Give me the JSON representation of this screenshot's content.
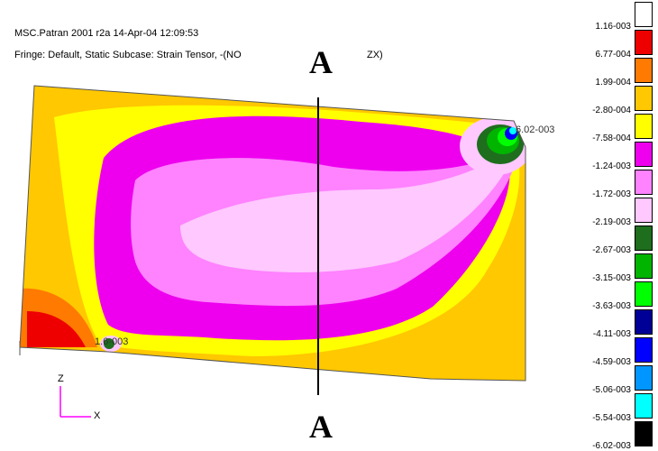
{
  "header": {
    "line1": "MSC.Patran 2001 r2a 14-Apr-04 12:09:53",
    "line2": "Fringe: Default, Static Subcase: Strain Tensor, -(NO",
    "line2_suffix": "ZX)"
  },
  "section": {
    "top_label": "A",
    "bottom_label": "A"
  },
  "probes": {
    "max_label": "6.02-003",
    "min_label": "1.6-003"
  },
  "axes": {
    "z_label": "Z",
    "x_label": "X"
  },
  "legend": {
    "entries": [
      {
        "label": "1.16-003",
        "color": "#ffffff"
      },
      {
        "label": "6.77-004",
        "color": "#ee0000"
      },
      {
        "label": "1.99-004",
        "color": "#ff7a00"
      },
      {
        "label": "-2.80-004",
        "color": "#ffc800"
      },
      {
        "label": "-7.58-004",
        "color": "#ffff00"
      },
      {
        "label": "-1.24-003",
        "color": "#ee00ee"
      },
      {
        "label": "-1.72-003",
        "color": "#ff82ff"
      },
      {
        "label": "-2.19-003",
        "color": "#ffc8ff"
      },
      {
        "label": "-2.67-003",
        "color": "#1e6e1e"
      },
      {
        "label": "-3.15-003",
        "color": "#00b400"
      },
      {
        "label": "-3.63-003",
        "color": "#00ff00"
      },
      {
        "label": "-4.11-003",
        "color": "#000096"
      },
      {
        "label": "-4.59-003",
        "color": "#0000ff"
      },
      {
        "label": "-5.06-003",
        "color": "#0096ff"
      },
      {
        "label": "-5.54-003",
        "color": "#00ffff"
      },
      {
        "label": "-6.02-003",
        "color": "#000000"
      }
    ]
  }
}
